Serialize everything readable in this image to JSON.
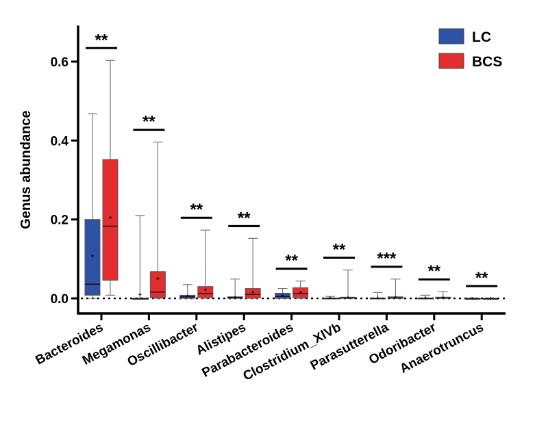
{
  "chart_data": {
    "type": "box",
    "ylabel": "Genus abundance",
    "xlabel": "",
    "ylim": [
      -0.04,
      0.7
    ],
    "yticks": [
      0.0,
      0.2,
      0.4,
      0.6
    ],
    "ytick_labels": [
      "0.0",
      "0.2",
      "0.4",
      "0.6"
    ],
    "legend_position": "top-right",
    "legend": [
      {
        "name": "LC",
        "color": "#2e52a6"
      },
      {
        "name": "BCS",
        "color": "#e32d2e"
      }
    ],
    "categories": [
      "Bacteroides",
      "Megamonas",
      "Oscillibacter",
      "Alistipes",
      "Parabacteroides",
      "Clostridium_XlVb",
      "Parasutterella",
      "Odoribacter",
      "Anaerotruncus"
    ],
    "significance": [
      "**",
      "**",
      "**",
      "**",
      "**",
      "**",
      "***",
      "**",
      "**"
    ],
    "series": [
      {
        "name": "LC",
        "color": "#2e52a6",
        "boxes": [
          {
            "min": 0.0,
            "q1": 0.008,
            "median": 0.036,
            "q3": 0.2,
            "max": 0.468,
            "mean": 0.108
          },
          {
            "min": 0.0,
            "q1": 0.0,
            "median": 0.0,
            "q3": 0.0,
            "max": 0.21,
            "mean": 0.01
          },
          {
            "min": 0.0,
            "q1": 0.0,
            "median": 0.004,
            "q3": 0.008,
            "max": 0.035,
            "mean": 0.006
          },
          {
            "min": 0.0,
            "q1": 0.0,
            "median": 0.002,
            "q3": 0.004,
            "max": 0.049,
            "mean": 0.003
          },
          {
            "min": 0.0,
            "q1": 0.0,
            "median": 0.005,
            "q3": 0.013,
            "max": 0.025,
            "mean": 0.007
          },
          {
            "min": 0.0,
            "q1": 0.0,
            "median": 0.0,
            "q3": 0.001,
            "max": 0.005,
            "mean": 0.001
          },
          {
            "min": 0.0,
            "q1": 0.0,
            "median": 0.0,
            "q3": 0.001,
            "max": 0.015,
            "mean": 0.001
          },
          {
            "min": 0.0,
            "q1": 0.0,
            "median": 0.0,
            "q3": 0.001,
            "max": 0.008,
            "mean": 0.001
          },
          {
            "min": 0.0,
            "q1": 0.0,
            "median": 0.0,
            "q3": 0.0,
            "max": 0.0,
            "mean": 0.0
          }
        ]
      },
      {
        "name": "BCS",
        "color": "#e32d2e",
        "boxes": [
          {
            "min": 0.008,
            "q1": 0.046,
            "median": 0.183,
            "q3": 0.352,
            "max": 0.603,
            "mean": 0.205
          },
          {
            "min": 0.0,
            "q1": 0.002,
            "median": 0.016,
            "q3": 0.068,
            "max": 0.396,
            "mean": 0.05
          },
          {
            "min": 0.0,
            "q1": 0.002,
            "median": 0.012,
            "q3": 0.03,
            "max": 0.173,
            "mean": 0.022
          },
          {
            "min": 0.0,
            "q1": 0.001,
            "median": 0.01,
            "q3": 0.025,
            "max": 0.152,
            "mean": 0.016
          },
          {
            "min": 0.0,
            "q1": 0.002,
            "median": 0.012,
            "q3": 0.027,
            "max": 0.044,
            "mean": 0.015
          },
          {
            "min": 0.0,
            "q1": 0.0,
            "median": 0.001,
            "q3": 0.003,
            "max": 0.072,
            "mean": 0.002
          },
          {
            "min": 0.0,
            "q1": 0.0,
            "median": 0.001,
            "q3": 0.004,
            "max": 0.049,
            "mean": 0.003
          },
          {
            "min": 0.0,
            "q1": 0.0,
            "median": 0.001,
            "q3": 0.003,
            "max": 0.017,
            "mean": 0.002
          },
          {
            "min": 0.0,
            "q1": 0.0,
            "median": 0.0,
            "q3": 0.0,
            "max": 0.0,
            "mean": 0.0
          }
        ]
      }
    ]
  }
}
